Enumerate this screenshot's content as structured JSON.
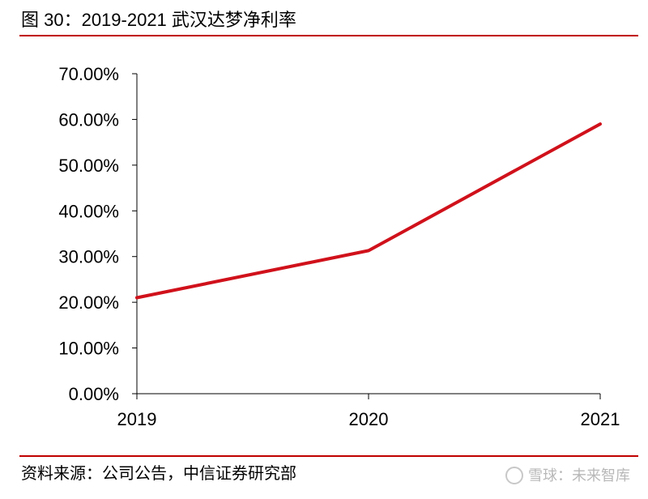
{
  "figure": {
    "title": "图 30：2019-2021 武汉达梦净利率",
    "source": "资料来源：公司公告，中信证券研究部",
    "watermark": "雪球：未来智库",
    "rule_color": "#c00000"
  },
  "chart_data": {
    "type": "line",
    "title": "",
    "xlabel": "",
    "ylabel": "",
    "categories": [
      "2019",
      "2020",
      "2021"
    ],
    "series": [
      {
        "values": [
          21.0,
          31.3,
          59.0
        ],
        "color": "#d0111b"
      }
    ],
    "ylim": [
      0,
      70
    ],
    "yticks": [
      0,
      10,
      20,
      30,
      40,
      50,
      60,
      70
    ],
    "ytick_labels": [
      "0.00%",
      "10.00%",
      "20.00%",
      "30.00%",
      "40.00%",
      "50.00%",
      "60.00%",
      "70.00%"
    ],
    "grid": false,
    "legend": "none"
  }
}
